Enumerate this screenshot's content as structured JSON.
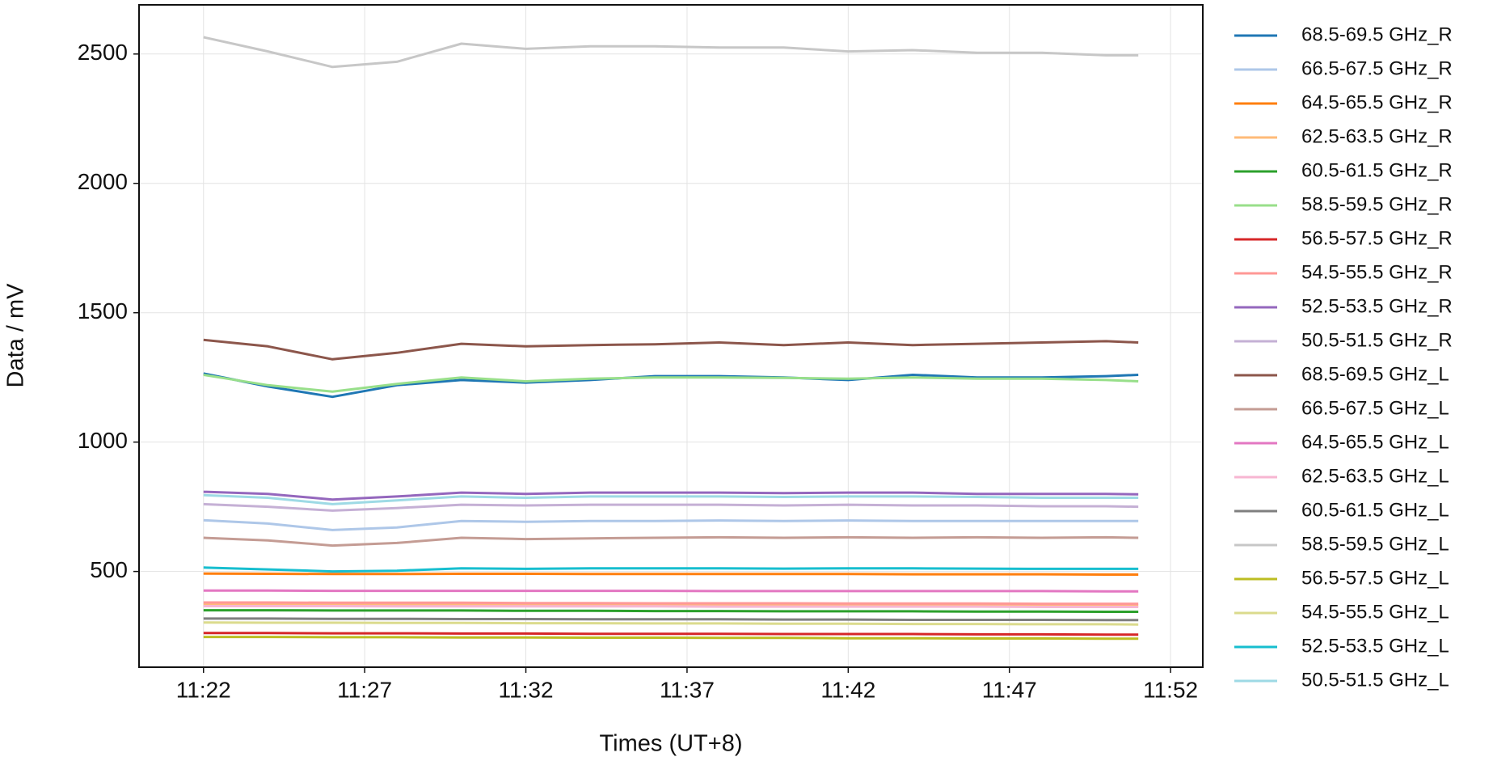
{
  "chart_data": {
    "type": "line",
    "x_label": "Times (UT+8)",
    "y_label": "Data / mV",
    "x": [
      "11:22",
      "11:24",
      "11:26",
      "11:28",
      "11:30",
      "11:32",
      "11:34",
      "11:36",
      "11:38",
      "11:40",
      "11:42",
      "11:44",
      "11:46",
      "11:48",
      "11:50",
      "11:51"
    ],
    "xlim": [
      "11:20",
      "11:53"
    ],
    "xticks": [
      "11:22",
      "11:27",
      "11:32",
      "11:37",
      "11:42",
      "11:47",
      "11:52"
    ],
    "ylim": [
      130,
      2690
    ],
    "yticks": [
      500,
      1000,
      1500,
      2000,
      2500
    ],
    "grid": true,
    "legend": "outside right",
    "series": [
      {
        "name": "68.5-69.5 GHz_R",
        "color": "#1f77b4",
        "values": [
          1265,
          1215,
          1175,
          1220,
          1240,
          1230,
          1240,
          1255,
          1255,
          1250,
          1240,
          1260,
          1250,
          1250,
          1255,
          1260
        ]
      },
      {
        "name": "66.5-67.5 GHz_R",
        "color": "#aec7e8",
        "values": [
          698,
          685,
          660,
          670,
          695,
          692,
          695,
          695,
          697,
          695,
          697,
          695,
          695,
          695,
          695,
          695
        ]
      },
      {
        "name": "64.5-65.5 GHz_R",
        "color": "#ff7f0e",
        "values": [
          492,
          491,
          490,
          490,
          491,
          491,
          490,
          490,
          490,
          490,
          490,
          489,
          489,
          489,
          488,
          488
        ]
      },
      {
        "name": "62.5-63.5 GHz_R",
        "color": "#ffbb78",
        "values": [
          372,
          372,
          371,
          371,
          371,
          370,
          370,
          370,
          370,
          369,
          369,
          369,
          369,
          368,
          368,
          368
        ]
      },
      {
        "name": "60.5-61.5 GHz_R",
        "color": "#2ca02c",
        "values": [
          350,
          350,
          349,
          349,
          349,
          348,
          348,
          347,
          347,
          346,
          346,
          346,
          345,
          345,
          344,
          344
        ]
      },
      {
        "name": "58.5-59.5 GHz_R",
        "color": "#98df8a",
        "values": [
          1260,
          1220,
          1195,
          1225,
          1250,
          1235,
          1245,
          1250,
          1250,
          1248,
          1245,
          1250,
          1245,
          1245,
          1240,
          1235
        ]
      },
      {
        "name": "56.5-57.5 GHz_R",
        "color": "#d62728",
        "values": [
          262,
          262,
          261,
          261,
          260,
          260,
          259,
          259,
          259,
          258,
          258,
          258,
          257,
          257,
          256,
          256
        ]
      },
      {
        "name": "54.5-55.5 GHz_R",
        "color": "#ff9896",
        "values": [
          380,
          380,
          379,
          379,
          379,
          378,
          378,
          377,
          377,
          377,
          376,
          376,
          376,
          375,
          375,
          375
        ]
      },
      {
        "name": "52.5-53.5 GHz_R",
        "color": "#9467bd",
        "values": [
          808,
          800,
          778,
          790,
          805,
          800,
          805,
          805,
          805,
          803,
          805,
          805,
          800,
          800,
          800,
          798
        ]
      },
      {
        "name": "50.5-51.5 GHz_R",
        "color": "#c5b0d5",
        "values": [
          760,
          750,
          735,
          745,
          758,
          755,
          758,
          758,
          758,
          755,
          758,
          755,
          755,
          752,
          752,
          750
        ]
      },
      {
        "name": "68.5-69.5 GHz_L",
        "color": "#8c564b",
        "values": [
          1395,
          1370,
          1320,
          1345,
          1380,
          1370,
          1375,
          1378,
          1385,
          1375,
          1385,
          1375,
          1380,
          1385,
          1390,
          1385
        ]
      },
      {
        "name": "66.5-67.5 GHz_L",
        "color": "#c49c94",
        "values": [
          630,
          620,
          600,
          610,
          630,
          625,
          628,
          630,
          632,
          630,
          632,
          630,
          632,
          630,
          632,
          630
        ]
      },
      {
        "name": "64.5-65.5 GHz_L",
        "color": "#e377c2",
        "values": [
          426,
          426,
          425,
          425,
          425,
          425,
          425,
          425,
          424,
          424,
          424,
          424,
          424,
          424,
          423,
          423
        ]
      },
      {
        "name": "62.5-63.5 GHz_L",
        "color": "#f7b6d2",
        "values": [
          366,
          366,
          366,
          365,
          365,
          365,
          365,
          365,
          364,
          364,
          364,
          364,
          364,
          363,
          363,
          363
        ]
      },
      {
        "name": "60.5-61.5 GHz_L",
        "color": "#7f7f7f",
        "values": [
          318,
          318,
          317,
          317,
          316,
          316,
          315,
          315,
          315,
          314,
          314,
          313,
          313,
          313,
          312,
          312
        ]
      },
      {
        "name": "58.5-59.5 GHz_L",
        "color": "#c7c7c7",
        "values": [
          2565,
          2510,
          2450,
          2470,
          2540,
          2520,
          2530,
          2530,
          2525,
          2525,
          2510,
          2515,
          2505,
          2505,
          2495,
          2495
        ]
      },
      {
        "name": "56.5-57.5 GHz_L",
        "color": "#bcbd22",
        "values": [
          247,
          247,
          246,
          246,
          245,
          245,
          244,
          244,
          243,
          243,
          242,
          242,
          241,
          241,
          240,
          240
        ]
      },
      {
        "name": "54.5-55.5 GHz_L",
        "color": "#dbdb8d",
        "values": [
          303,
          302,
          302,
          301,
          301,
          300,
          300,
          299,
          299,
          298,
          298,
          297,
          297,
          296,
          296,
          295
        ]
      },
      {
        "name": "52.5-53.5 GHz_L",
        "color": "#17becf",
        "values": [
          515,
          508,
          500,
          503,
          512,
          510,
          512,
          512,
          512,
          511,
          512,
          512,
          511,
          510,
          510,
          510
        ]
      },
      {
        "name": "50.5-51.5 GHz_L",
        "color": "#9edae5",
        "values": [
          795,
          785,
          760,
          775,
          790,
          785,
          790,
          790,
          790,
          788,
          790,
          790,
          788,
          785,
          785,
          785
        ]
      }
    ]
  }
}
